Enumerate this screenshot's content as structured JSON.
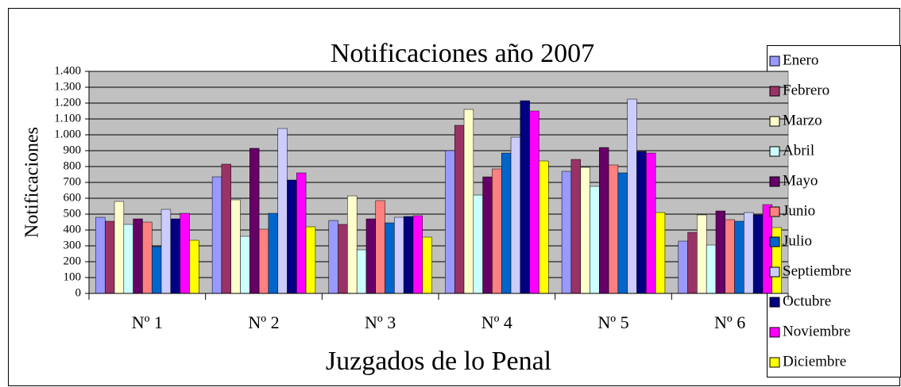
{
  "chart_data": {
    "type": "bar",
    "title": "Notificaciones año 2007",
    "y_label": "Notificaciones",
    "x_label": "Juzgados de lo Penal",
    "categories": [
      "Nº 1",
      "Nº 2",
      "Nº 3",
      "Nº 4",
      "Nº 5",
      "Nº 6"
    ],
    "series": [
      {
        "name": "Enero",
        "color": "#9999ff",
        "values": [
          480,
          735,
          460,
          900,
          770,
          330
        ]
      },
      {
        "name": "Febrero",
        "color": "#993366",
        "values": [
          455,
          815,
          435,
          1060,
          845,
          385
        ]
      },
      {
        "name": "Marzo",
        "color": "#ffffcc",
        "values": [
          580,
          590,
          615,
          1160,
          795,
          495
        ]
      },
      {
        "name": "Abril",
        "color": "#ccffff",
        "values": [
          435,
          360,
          275,
          620,
          675,
          305
        ]
      },
      {
        "name": "Mayo",
        "color": "#660066",
        "values": [
          470,
          915,
          470,
          735,
          920,
          520
        ]
      },
      {
        "name": "Junio",
        "color": "#ff8080",
        "values": [
          450,
          405,
          585,
          785,
          810,
          465
        ]
      },
      {
        "name": "Julio",
        "color": "#0066cc",
        "values": [
          295,
          505,
          445,
          885,
          760,
          455
        ]
      },
      {
        "name": "Septiembre",
        "color": "#ccccff",
        "values": [
          530,
          1040,
          480,
          985,
          1225,
          510
        ]
      },
      {
        "name": "Octubre",
        "color": "#000080",
        "values": [
          470,
          715,
          485,
          1215,
          895,
          495
        ]
      },
      {
        "name": "Noviembre",
        "color": "#ff00ff",
        "values": [
          505,
          760,
          490,
          1150,
          885,
          560
        ]
      },
      {
        "name": "Diciembre",
        "color": "#ffff00",
        "values": [
          335,
          420,
          355,
          835,
          510,
          415
        ]
      }
    ],
    "ylim": [
      0,
      1400
    ],
    "yticks": [
      0,
      100,
      200,
      300,
      400,
      500,
      600,
      700,
      800,
      900,
      {
        "value": 1000,
        "label": "1.000"
      },
      {
        "value": 1100,
        "label": "1.100"
      },
      {
        "value": 1200,
        "label": "1.200"
      },
      {
        "value": 1300,
        "label": "1.300"
      },
      {
        "value": 1400,
        "label": "1.400"
      }
    ],
    "grid": true,
    "plot_background": "#c0c0c0"
  }
}
